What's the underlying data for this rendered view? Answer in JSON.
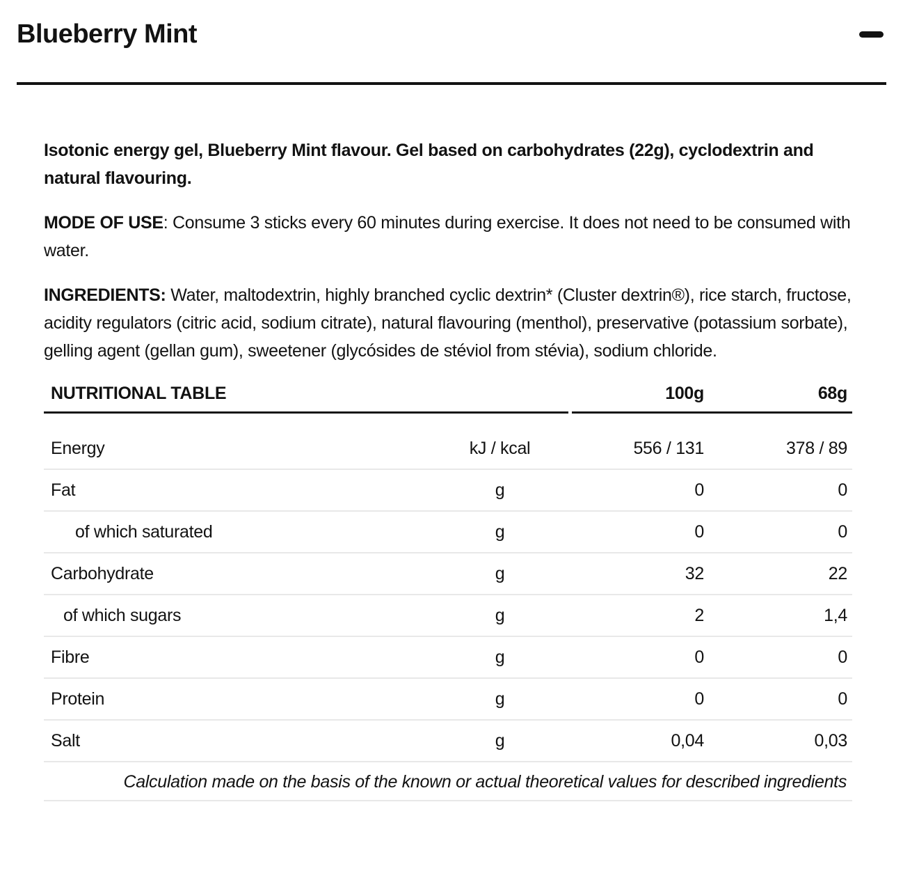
{
  "accordion": {
    "title": "Blueberry Mint",
    "state": "expanded"
  },
  "description": {
    "intro": "Isotonic energy gel, Blueberry Mint flavour. Gel based on carbohydrates (22g), cyclodextrin and natural flavouring.",
    "mode_of_use_label": "MODE OF USE",
    "mode_of_use_text": ": Consume 3 sticks every 60 minutes during exercise. It does not need to be consumed with water.",
    "ingredients_label": "INGREDIENTS:",
    "ingredients_text": " Water, maltodextrin, highly branched cyclic dextrin* (Cluster dextrin®), rice starch, fructose, acidity regulators (citric acid, sodium citrate), natural flavouring (menthol), preservative (potassium sorbate), gelling agent (gellan gum), sweetener (glycósides de stéviol from stévia), sodium chloride."
  },
  "nutrition_table": {
    "title": "NUTRITIONAL TABLE",
    "col_100g": "100g",
    "col_68g": "68g",
    "rows": [
      {
        "label": "Energy",
        "unit": "kJ / kcal",
        "per100": "556 / 131",
        "per68": "378 / 89"
      },
      {
        "label": "Fat",
        "unit": "g",
        "per100": "0",
        "per68": "0"
      },
      {
        "label": "of which saturated",
        "unit": "g",
        "per100": "0",
        "per68": "0"
      },
      {
        "label": "Carbohydrate",
        "unit": "g",
        "per100": "32",
        "per68": "22"
      },
      {
        "label": "of which sugars",
        "unit": "g",
        "per100": "2",
        "per68": "1,4"
      },
      {
        "label": "Fibre",
        "unit": "g",
        "per100": "0",
        "per68": "0"
      },
      {
        "label": "Protein",
        "unit": "g",
        "per100": "0",
        "per68": "0"
      },
      {
        "label": "Salt",
        "unit": "g",
        "per100": "0,04",
        "per68": "0,03"
      }
    ],
    "footnote": "Calculation made on the basis of the known or actual theoretical values for described ingredients"
  },
  "colors": {
    "text": "#121212",
    "rule_black": "#121212",
    "row_separator": "#e8e8e8",
    "background": "#ffffff"
  }
}
